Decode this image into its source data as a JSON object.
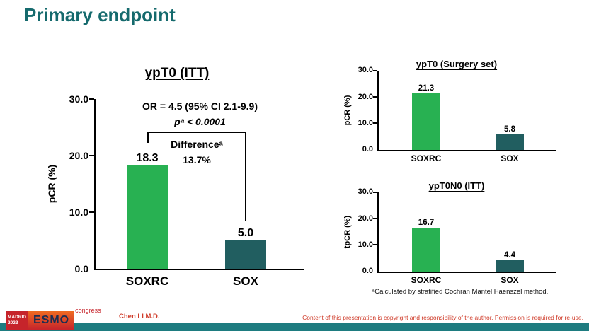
{
  "slide": {
    "title": "Primary endpoint"
  },
  "chart_data": [
    {
      "type": "bar",
      "title": "ypT0 (ITT)",
      "categories": [
        "SOXRC",
        "SOX"
      ],
      "values": [
        18.3,
        5.0
      ],
      "value_labels": [
        "18.3",
        "5.0"
      ],
      "ylabel": "pCR (%)",
      "ylim": [
        0,
        30
      ],
      "yticks": [
        "30.0",
        "20.0",
        "10.0",
        "0.0"
      ],
      "grid": false,
      "annotations": {
        "or_line": "OR = 4.5 (95% CI 2.1-9.9)",
        "p_line": "pᵃ < 0.0001",
        "difference_label": "Differenceᵃ",
        "difference_value": "13.7%"
      }
    },
    {
      "type": "bar",
      "title": "ypT0 (Surgery set)",
      "categories": [
        "SOXRC",
        "SOX"
      ],
      "values": [
        21.3,
        5.8
      ],
      "value_labels": [
        "21.3",
        "5.8"
      ],
      "ylabel": "pCR (%)",
      "ylim": [
        0,
        30
      ],
      "yticks": [
        "30.0",
        "20.0",
        "10.0",
        "0.0"
      ],
      "grid": false
    },
    {
      "type": "bar",
      "title": "ypT0N0 (ITT)",
      "categories": [
        "SOXRC",
        "SOX"
      ],
      "values": [
        16.7,
        4.4
      ],
      "value_labels": [
        "16.7",
        "4.4"
      ],
      "ylabel": "tpCR (%)",
      "ylim": [
        0,
        30
      ],
      "yticks": [
        "30.0",
        "20.0",
        "10.0",
        "0.0"
      ],
      "grid": false
    }
  ],
  "footnote": "ᵃCalculated by stratified Cochran Mantel Haenszel method.",
  "footer": {
    "author": "Chen LI M.D.",
    "copyright": "Content of this presentation is copyright and responsibility of the author. Permission is required for re-use.",
    "logo": {
      "city": "MADRID",
      "year": "2023",
      "name": "ESMO",
      "event": "congress"
    }
  },
  "colors": {
    "title": "#156a6d",
    "bar_soxrc": "#28b152",
    "bar_sox": "#215e60",
    "accent_strip": "#1e7c80",
    "footer_red": "#cf3a28",
    "logo_red": "#c6242b",
    "logo_orange": "#ef6a21"
  }
}
